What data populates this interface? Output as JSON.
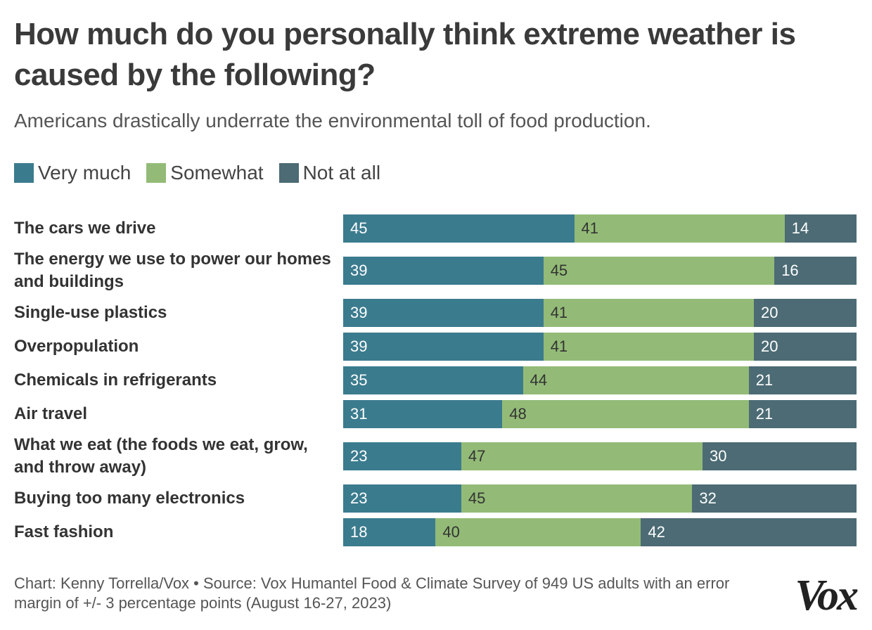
{
  "chart_data": {
    "type": "stacked-bar-horizontal",
    "title": "How much do you personally think extreme weather is caused by the following?",
    "subtitle": "Americans drastically underrate the environmental toll of food production.",
    "categories": [
      "The cars we drive",
      "The energy we use to power our homes and buildings",
      "Single-use plastics",
      "Overpopulation",
      "Chemicals in refrigerants",
      "Air travel",
      "What we eat (the foods we eat, grow, and throw away)",
      "Buying too many electronics",
      "Fast fashion"
    ],
    "series": [
      {
        "name": "Very much",
        "color": "#3b7b8e",
        "text_color": "#ffffff",
        "values": [
          45,
          39,
          39,
          39,
          35,
          31,
          23,
          23,
          18
        ]
      },
      {
        "name": "Somewhat",
        "color": "#93bb77",
        "text_color": "#333333",
        "values": [
          41,
          45,
          41,
          41,
          44,
          48,
          47,
          45,
          40
        ]
      },
      {
        "name": "Not at all",
        "color": "#4c6b74",
        "text_color": "#ffffff",
        "values": [
          14,
          16,
          20,
          20,
          21,
          21,
          30,
          32,
          42
        ]
      }
    ],
    "xlim": [
      0,
      100
    ],
    "legend": "top-left",
    "source": "Chart: Kenny Torrella/Vox • Source: Vox Humantel Food & Climate Survey of 949 US adults with an error margin of +/- 3 percentage points (August 16-27, 2023)",
    "logo": "Vox"
  }
}
